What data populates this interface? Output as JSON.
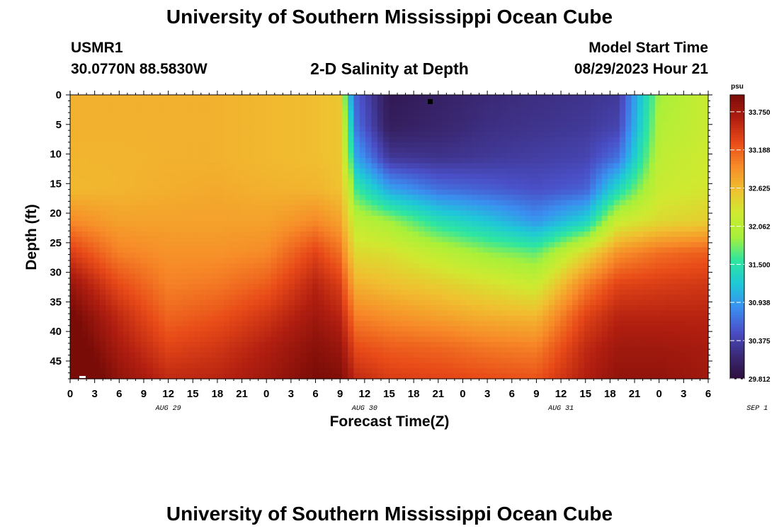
{
  "header": {
    "title": "University of Southern Mississippi Ocean Cube",
    "station_id": "USMR1",
    "station_coords": "30.0770N  88.5830W",
    "plot_title": "2-D Salinity at Depth",
    "model_start_label": "Model Start Time",
    "model_start_value": "08/29/2023 Hour 21"
  },
  "footer": {
    "title": "University of Southern Mississippi Ocean Cube"
  },
  "chart_data": {
    "type": "heatmap",
    "title": "2-D Salinity at Depth",
    "xlabel": "Forecast Time(Z)",
    "ylabel": "Depth (ft)",
    "colorbar_unit": "psu",
    "x_range_hours": [
      0,
      78
    ],
    "y_range_ft": [
      0,
      48
    ],
    "y_inverted": true,
    "x_tick_labels": [
      "0",
      "3",
      "6",
      "9",
      "12",
      "15",
      "18",
      "21",
      "0",
      "3",
      "6",
      "9",
      "12",
      "15",
      "18",
      "21",
      "0",
      "3",
      "6",
      "9",
      "12",
      "15",
      "18",
      "21",
      "0",
      "3",
      "6"
    ],
    "y_tick_labels": [
      "0",
      "5",
      "10",
      "15",
      "20",
      "25",
      "30",
      "35",
      "40",
      "45"
    ],
    "date_labels": [
      "AUG 29",
      "AUG 30",
      "AUG 31",
      "SEP 1"
    ],
    "colorbar_ticks": [
      "33.750",
      "33.188",
      "32.625",
      "32.062",
      "31.500",
      "30.938",
      "30.375",
      "29.812"
    ],
    "color_range": [
      29.812,
      34.0
    ],
    "colormap": [
      "#2d0f3c",
      "#3b2a78",
      "#4a50c8",
      "#3a8ff0",
      "#1fc8d8",
      "#2ee6a0",
      "#a8f03a",
      "#cfea30",
      "#f0c030",
      "#f78a28",
      "#e84a18",
      "#b01e10",
      "#7a0c08"
    ],
    "depth_columns": [
      {
        "hour": 0,
        "salinity": [
          32.7,
          32.7,
          32.68,
          32.65,
          32.95,
          33.4,
          33.8,
          34.05,
          34.2,
          34.35
        ]
      },
      {
        "hour": 6,
        "salinity": [
          32.7,
          32.7,
          32.68,
          32.68,
          32.8,
          33.0,
          33.3,
          33.55,
          33.7,
          33.85
        ]
      },
      {
        "hour": 12,
        "salinity": [
          32.7,
          32.7,
          32.7,
          32.72,
          32.8,
          32.9,
          33.0,
          33.15,
          33.35,
          33.55
        ]
      },
      {
        "hour": 18,
        "salinity": [
          32.7,
          32.7,
          32.7,
          32.75,
          32.8,
          32.9,
          33.05,
          33.25,
          33.45,
          33.6
        ]
      },
      {
        "hour": 24,
        "salinity": [
          32.65,
          32.65,
          32.65,
          32.7,
          32.8,
          32.95,
          33.2,
          33.45,
          33.65,
          33.75
        ]
      },
      {
        "hour": 30,
        "salinity": [
          32.62,
          32.62,
          32.62,
          32.68,
          32.95,
          33.35,
          33.6,
          33.75,
          33.9,
          34.0
        ]
      },
      {
        "hour": 33,
        "salinity": [
          32.55,
          32.55,
          32.55,
          32.6,
          32.8,
          33.1,
          33.4,
          33.6,
          33.8,
          33.95
        ]
      },
      {
        "hour": 34,
        "salinity": [
          31.2,
          31.6,
          31.9,
          32.2,
          32.45,
          32.7,
          33.0,
          33.3,
          33.55,
          33.75
        ]
      },
      {
        "hour": 35,
        "salinity": [
          30.6,
          30.7,
          31.0,
          31.6,
          32.1,
          32.4,
          32.7,
          33.0,
          33.3,
          33.55
        ]
      },
      {
        "hour": 39,
        "salinity": [
          29.95,
          30.0,
          30.3,
          31.0,
          31.9,
          32.35,
          32.6,
          32.9,
          33.2,
          33.4
        ]
      },
      {
        "hour": 45,
        "salinity": [
          30.05,
          30.1,
          30.25,
          30.7,
          31.45,
          32.1,
          32.5,
          32.8,
          33.15,
          33.35
        ]
      },
      {
        "hour": 51,
        "salinity": [
          30.15,
          30.2,
          30.3,
          30.6,
          31.2,
          31.85,
          32.35,
          32.7,
          33.05,
          33.3
        ]
      },
      {
        "hour": 57,
        "salinity": [
          30.2,
          30.25,
          30.35,
          30.5,
          30.9,
          31.7,
          32.2,
          32.65,
          33.0,
          33.25
        ]
      },
      {
        "hour": 63,
        "salinity": [
          30.25,
          30.3,
          30.4,
          30.6,
          31.3,
          32.4,
          33.0,
          33.35,
          33.55,
          33.65
        ]
      },
      {
        "hour": 67,
        "salinity": [
          30.3,
          30.4,
          30.7,
          31.4,
          32.2,
          32.9,
          33.35,
          33.6,
          33.75,
          33.85
        ]
      },
      {
        "hour": 72,
        "salinity": [
          31.9,
          32.0,
          32.1,
          32.2,
          32.4,
          33.1,
          33.4,
          33.6,
          33.75,
          33.85
        ]
      },
      {
        "hour": 78,
        "salinity": [
          32.2,
          32.2,
          32.25,
          32.3,
          32.5,
          33.2,
          33.45,
          33.6,
          33.7,
          33.75
        ]
      }
    ]
  }
}
